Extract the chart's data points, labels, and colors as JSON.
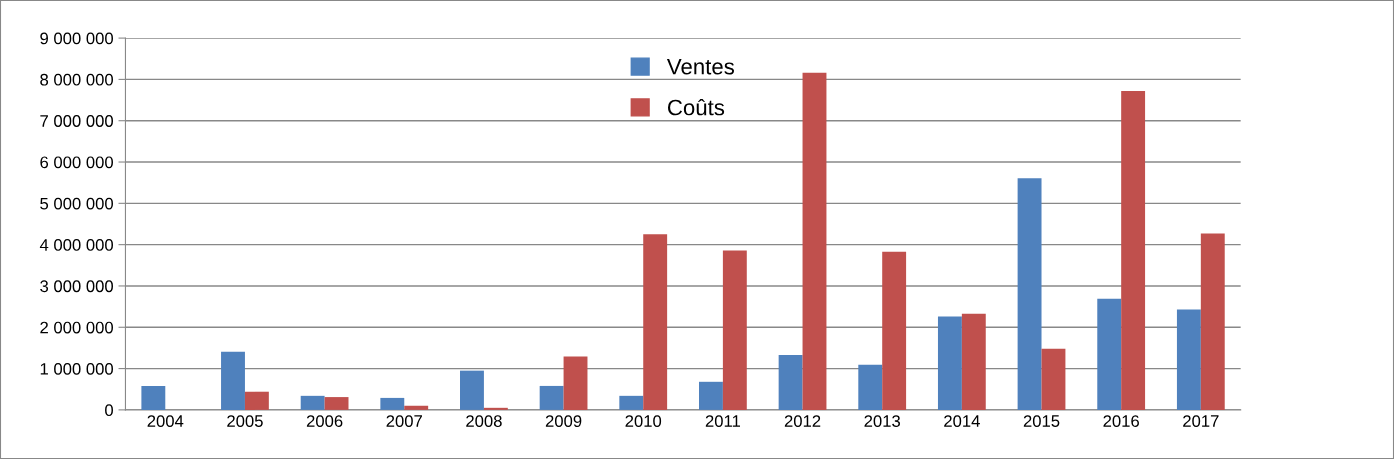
{
  "chart_data": {
    "type": "bar",
    "categories": [
      "2004",
      "2005",
      "2006",
      "2007",
      "2008",
      "2009",
      "2010",
      "2011",
      "2012",
      "2013",
      "2014",
      "2015",
      "2016",
      "2017"
    ],
    "series": [
      {
        "name": "Ventes",
        "color": "#4f81bd",
        "values": [
          580000,
          1410000,
          340000,
          290000,
          950000,
          580000,
          340000,
          680000,
          1330000,
          1090000,
          2260000,
          5610000,
          2690000,
          2430000
        ]
      },
      {
        "name": "Coûts",
        "color": "#c0504d",
        "values": [
          0,
          440000,
          310000,
          100000,
          50000,
          1290000,
          4250000,
          3860000,
          8160000,
          3830000,
          2330000,
          1480000,
          7720000,
          4270000
        ]
      }
    ],
    "ylim": [
      0,
      9000000
    ],
    "yticks": [
      {
        "value": 0,
        "label": "0"
      },
      {
        "value": 1000000,
        "label": "1 000 000"
      },
      {
        "value": 2000000,
        "label": "2 000 000"
      },
      {
        "value": 3000000,
        "label": "3 000 000"
      },
      {
        "value": 4000000,
        "label": "4 000 000"
      },
      {
        "value": 5000000,
        "label": "5 000 000"
      },
      {
        "value": 6000000,
        "label": "6 000 000"
      },
      {
        "value": 7000000,
        "label": "7 000 000"
      },
      {
        "value": 8000000,
        "label": "8 000 000"
      },
      {
        "value": 9000000,
        "label": "9 000 000"
      }
    ],
    "grid": "y",
    "legend": "top"
  }
}
